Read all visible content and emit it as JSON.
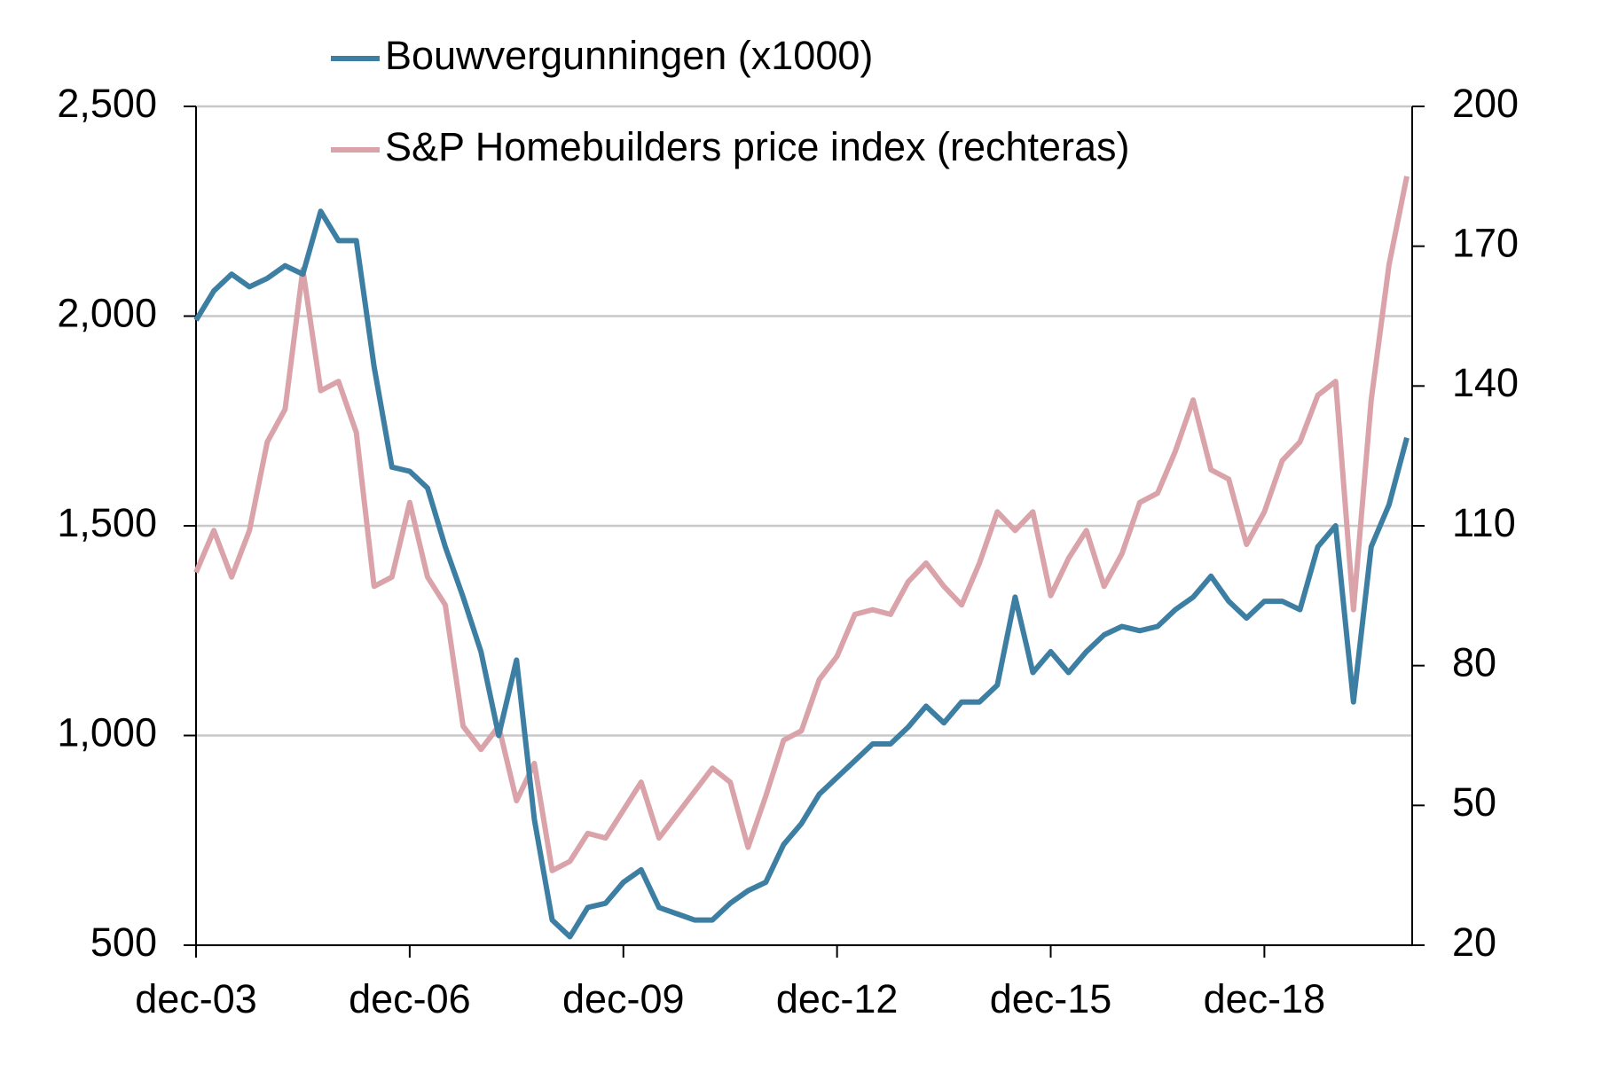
{
  "chart_data": {
    "type": "line",
    "categories": [
      "dec-03",
      null,
      null,
      null,
      null,
      null,
      null,
      null,
      null,
      null,
      null,
      null,
      "dec-06",
      null,
      null,
      null,
      null,
      null,
      null,
      null,
      null,
      null,
      null,
      null,
      "dec-09",
      null,
      null,
      null,
      null,
      null,
      null,
      null,
      null,
      null,
      null,
      null,
      "dec-12",
      null,
      null,
      null,
      null,
      null,
      null,
      null,
      null,
      null,
      null,
      null,
      "dec-15",
      null,
      null,
      null,
      null,
      null,
      null,
      null,
      null,
      null,
      null,
      null,
      "dec-18",
      null,
      null,
      null,
      null,
      null,
      null,
      null,
      null
    ],
    "series": [
      {
        "name": "Bouwvergunningen (x1000)",
        "color": "#3d7fa3",
        "values": [
          1990,
          2060,
          2100,
          2070,
          2090,
          2120,
          2100,
          2250,
          2180,
          2180,
          1880,
          1640,
          1630,
          1590,
          1450,
          1330,
          1200,
          1000,
          1180,
          800,
          560,
          520,
          590,
          600,
          650,
          680,
          590,
          575,
          560,
          560,
          600,
          630,
          650,
          740,
          790,
          860,
          900,
          940,
          980,
          980,
          1020,
          1070,
          1030,
          1080,
          1080,
          1120,
          1330,
          1150,
          1200,
          1150,
          1200,
          1240,
          1260,
          1250,
          1260,
          1300,
          1330,
          1380,
          1320,
          1280,
          1320,
          1320,
          1300,
          1450,
          1500,
          1080,
          1450,
          1550,
          1710
        ]
      },
      {
        "name": "S&P Homebuilders price index (rechteras)",
        "color": "#d9a3a9",
        "axis": "y2",
        "values": [
          100,
          109,
          99,
          109,
          128,
          135,
          165,
          139,
          141,
          130,
          97,
          99,
          115,
          99,
          93,
          67,
          62,
          67,
          51,
          59,
          36,
          38,
          44,
          43,
          49,
          55,
          43,
          48,
          53,
          58,
          55,
          41,
          52,
          64,
          66,
          77,
          82,
          91,
          92,
          91,
          98,
          102,
          97,
          93,
          102,
          113,
          109,
          113,
          95,
          103,
          109,
          97,
          104,
          115,
          117,
          126,
          137,
          122,
          120,
          106,
          113,
          124,
          128,
          138,
          141,
          92,
          137,
          166,
          185
        ]
      }
    ],
    "ylim": [
      500,
      2500
    ],
    "yticks": [
      500,
      {
        "value": 1000,
        "label": "1,000"
      },
      {
        "value": 1500,
        "label": "1,500"
      },
      {
        "value": 2000,
        "label": "2,000"
      },
      {
        "value": 2500,
        "label": "2,500"
      }
    ],
    "y2lim": [
      20,
      200
    ],
    "y2ticks": [
      20,
      50,
      80,
      110,
      140,
      170,
      200
    ],
    "grid": true,
    "legend": "top"
  }
}
